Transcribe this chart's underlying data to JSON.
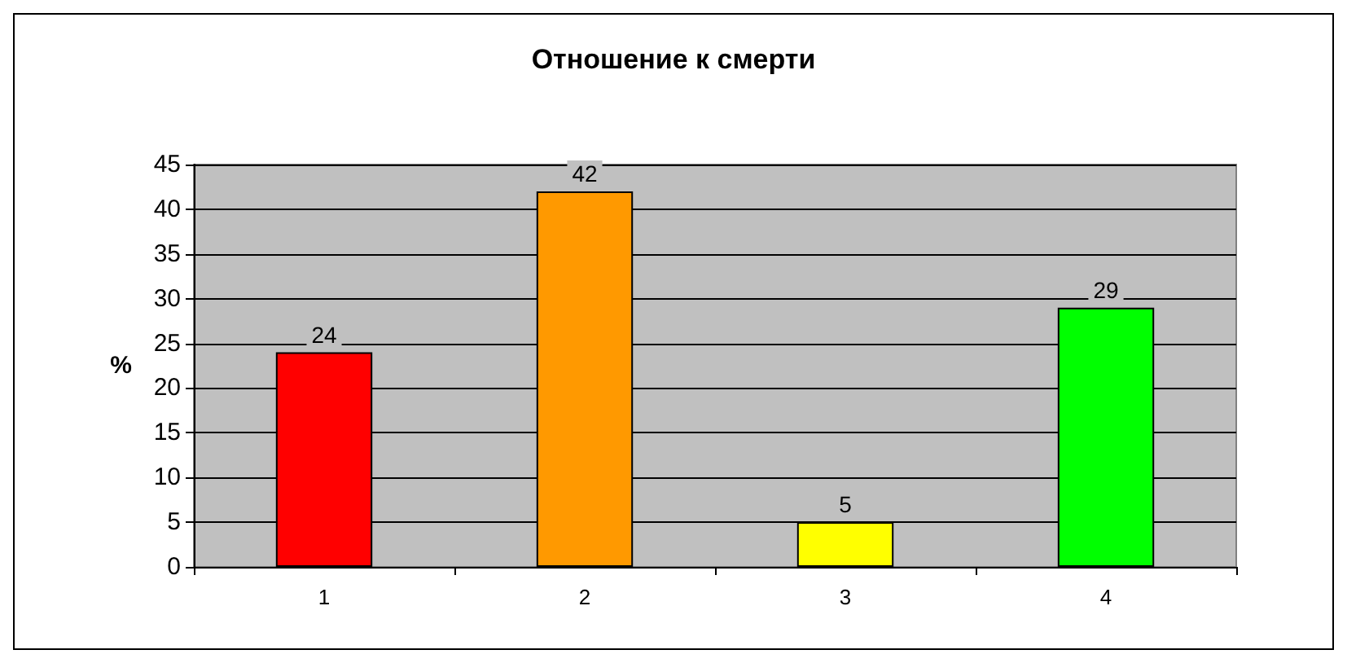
{
  "chart_data": {
    "type": "bar",
    "title": "Отношение к смерти",
    "ylabel": "%",
    "categories": [
      "1",
      "2",
      "3",
      "4"
    ],
    "values": [
      24,
      42,
      5,
      29
    ],
    "colors": [
      "#ff0000",
      "#ff9900",
      "#ffff00",
      "#00ff00"
    ],
    "ylim": [
      0,
      45
    ],
    "yticks": [
      0,
      5,
      10,
      15,
      20,
      25,
      30,
      35,
      40,
      45
    ],
    "grid": "y",
    "data_labels": true
  }
}
